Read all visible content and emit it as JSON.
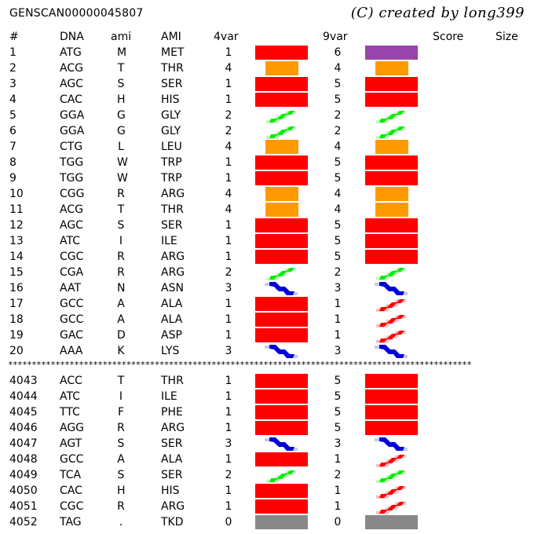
{
  "title": "GENSCAN00000045807",
  "credit": "(C) created by long399",
  "headers": {
    "idx": "#",
    "dna": "DNA",
    "ami": "ami",
    "AMI": "AMI",
    "v4": "4var",
    "v9": "9var",
    "score": "Score",
    "size": "Size"
  },
  "colors": {
    "red": "#ff0000",
    "orange": "#ff9900",
    "purple": "#9944aa",
    "green": "#00ee00",
    "blue": "#0000dd",
    "gray": "#888888"
  },
  "separator": "**************************************************************************************************",
  "rows_top": [
    {
      "idx": "1",
      "dna": "ATG",
      "ami": "M",
      "AMI": "MET",
      "v4": "1",
      "v9": "6",
      "g4": "red",
      "g9": "purple"
    },
    {
      "idx": "2",
      "dna": "ACG",
      "ami": "T",
      "AMI": "THR",
      "v4": "4",
      "v9": "4",
      "g4": "orange",
      "g9": "orange"
    },
    {
      "idx": "3",
      "dna": "AGC",
      "ami": "S",
      "AMI": "SER",
      "v4": "1",
      "v9": "5",
      "g4": "red",
      "g9": "red"
    },
    {
      "idx": "4",
      "dna": "CAC",
      "ami": "H",
      "AMI": "HIS",
      "v4": "1",
      "v9": "5",
      "g4": "red",
      "g9": "red"
    },
    {
      "idx": "5",
      "dna": "GGA",
      "ami": "G",
      "AMI": "GLY",
      "v4": "2",
      "v9": "2",
      "g4": "green",
      "g9": "green"
    },
    {
      "idx": "6",
      "dna": "GGA",
      "ami": "G",
      "AMI": "GLY",
      "v4": "2",
      "v9": "2",
      "g4": "green",
      "g9": "green"
    },
    {
      "idx": "7",
      "dna": "CTG",
      "ami": "L",
      "AMI": "LEU",
      "v4": "4",
      "v9": "4",
      "g4": "orange",
      "g9": "orange"
    },
    {
      "idx": "8",
      "dna": "TGG",
      "ami": "W",
      "AMI": "TRP",
      "v4": "1",
      "v9": "5",
      "g4": "red",
      "g9": "red"
    },
    {
      "idx": "9",
      "dna": "TGG",
      "ami": "W",
      "AMI": "TRP",
      "v4": "1",
      "v9": "5",
      "g4": "red",
      "g9": "red"
    },
    {
      "idx": "10",
      "dna": "CGG",
      "ami": "R",
      "AMI": "ARG",
      "v4": "4",
      "v9": "4",
      "g4": "orange",
      "g9": "orange"
    },
    {
      "idx": "11",
      "dna": "ACG",
      "ami": "T",
      "AMI": "THR",
      "v4": "4",
      "v9": "4",
      "g4": "orange",
      "g9": "orange"
    },
    {
      "idx": "12",
      "dna": "AGC",
      "ami": "S",
      "AMI": "SER",
      "v4": "1",
      "v9": "5",
      "g4": "red",
      "g9": "red"
    },
    {
      "idx": "13",
      "dna": "ATC",
      "ami": "I",
      "AMI": "ILE",
      "v4": "1",
      "v9": "5",
      "g4": "red",
      "g9": "red"
    },
    {
      "idx": "14",
      "dna": "CGC",
      "ami": "R",
      "AMI": "ARG",
      "v4": "1",
      "v9": "5",
      "g4": "red",
      "g9": "red"
    },
    {
      "idx": "15",
      "dna": "CGA",
      "ami": "R",
      "AMI": "ARG",
      "v4": "2",
      "v9": "2",
      "g4": "green",
      "g9": "green"
    },
    {
      "idx": "16",
      "dna": "AAT",
      "ami": "N",
      "AMI": "ASN",
      "v4": "3",
      "v9": "3",
      "g4": "blue",
      "g9": "blue"
    },
    {
      "idx": "17",
      "dna": "GCC",
      "ami": "A",
      "AMI": "ALA",
      "v4": "1",
      "v9": "1",
      "g4": "red",
      "g9": "redhelix"
    },
    {
      "idx": "18",
      "dna": "GCC",
      "ami": "A",
      "AMI": "ALA",
      "v4": "1",
      "v9": "1",
      "g4": "red",
      "g9": "redhelix"
    },
    {
      "idx": "19",
      "dna": "GAC",
      "ami": "D",
      "AMI": "ASP",
      "v4": "1",
      "v9": "1",
      "g4": "red",
      "g9": "redhelix"
    },
    {
      "idx": "20",
      "dna": "AAA",
      "ami": "K",
      "AMI": "LYS",
      "v4": "3",
      "v9": "3",
      "g4": "blue",
      "g9": "blue"
    }
  ],
  "rows_bottom": [
    {
      "idx": "4043",
      "dna": "ACC",
      "ami": "T",
      "AMI": "THR",
      "v4": "1",
      "v9": "5",
      "g4": "red",
      "g9": "red"
    },
    {
      "idx": "4044",
      "dna": "ATC",
      "ami": "I",
      "AMI": "ILE",
      "v4": "1",
      "v9": "5",
      "g4": "red",
      "g9": "red"
    },
    {
      "idx": "4045",
      "dna": "TTC",
      "ami": "F",
      "AMI": "PHE",
      "v4": "1",
      "v9": "5",
      "g4": "red",
      "g9": "red"
    },
    {
      "idx": "4046",
      "dna": "AGG",
      "ami": "R",
      "AMI": "ARG",
      "v4": "1",
      "v9": "5",
      "g4": "red",
      "g9": "red"
    },
    {
      "idx": "4047",
      "dna": "AGT",
      "ami": "S",
      "AMI": "SER",
      "v4": "3",
      "v9": "3",
      "g4": "blue",
      "g9": "blue"
    },
    {
      "idx": "4048",
      "dna": "GCC",
      "ami": "A",
      "AMI": "ALA",
      "v4": "1",
      "v9": "1",
      "g4": "red",
      "g9": "redhelix"
    },
    {
      "idx": "4049",
      "dna": "TCA",
      "ami": "S",
      "AMI": "SER",
      "v4": "2",
      "v9": "2",
      "g4": "green",
      "g9": "green"
    },
    {
      "idx": "4050",
      "dna": "CAC",
      "ami": "H",
      "AMI": "HIS",
      "v4": "1",
      "v9": "1",
      "g4": "red",
      "g9": "redhelix"
    },
    {
      "idx": "4051",
      "dna": "CGC",
      "ami": "R",
      "AMI": "ARG",
      "v4": "1",
      "v9": "1",
      "g4": "red",
      "g9": "redhelix"
    },
    {
      "idx": "4052",
      "dna": "TAG",
      "ami": ".",
      "AMI": "TKD",
      "v4": "0",
      "v9": "0",
      "g4": "gray",
      "g9": "gray"
    }
  ]
}
